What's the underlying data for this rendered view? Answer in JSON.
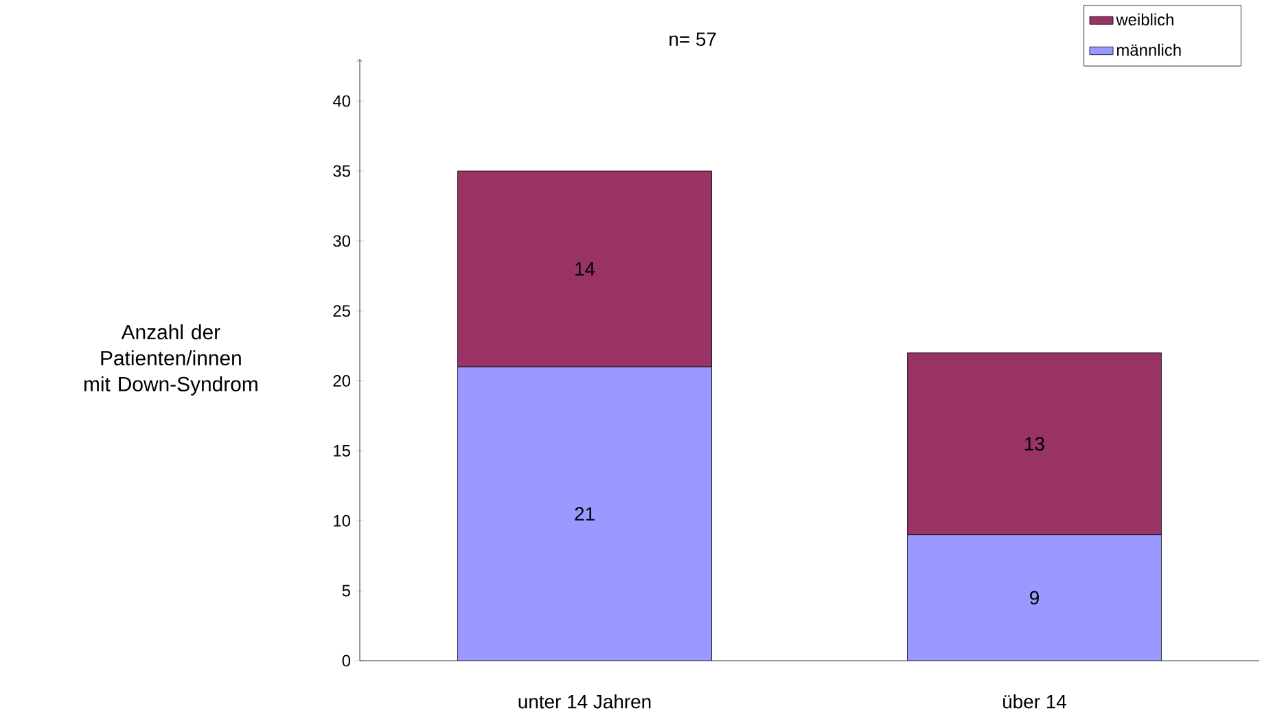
{
  "chart_data": {
    "type": "bar",
    "title": "n= 57",
    "ylabel": "Anzahl der Patienten/innen mit Down-Syndrom",
    "categories": [
      "unter 14 Jahren",
      "über 14"
    ],
    "series": [
      {
        "name": "männlich",
        "color": "#9999ff",
        "values": [
          21,
          9
        ]
      },
      {
        "name": "weiblich",
        "color": "#993366",
        "values": [
          14,
          13
        ]
      }
    ],
    "stacked": true,
    "data_labels": true,
    "legend": "top right",
    "grid": false,
    "ylim": [
      0,
      43
    ],
    "yticks": [
      0,
      5,
      10,
      15,
      20,
      25,
      30,
      35,
      40
    ]
  }
}
